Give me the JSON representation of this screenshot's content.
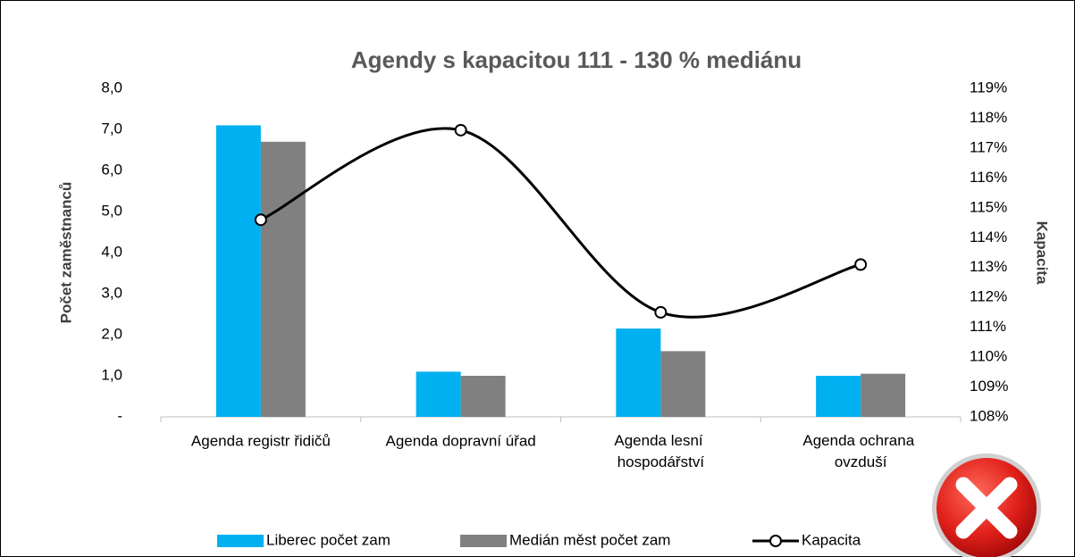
{
  "chart_data": {
    "type": "bar_line",
    "title": "Agendy s kapacitou 111 - 130 % mediánu",
    "y_label": "Počet zaměstnanců",
    "y2_label": "Kapacita",
    "categories": [
      "Agenda registr řidičů",
      "Agenda dopravní úřad",
      "Agenda lesní hospodářství",
      "Agenda ochrana ovzduší"
    ],
    "series": [
      {
        "name": "Liberec počet zam",
        "type": "bar",
        "color": "#00b0f0",
        "values": [
          7.1,
          1.1,
          2.15,
          1.0
        ]
      },
      {
        "name": "Medián měst počet zam",
        "type": "bar",
        "color": "#808080",
        "values": [
          6.7,
          1.0,
          1.6,
          1.05
        ]
      },
      {
        "name": "Kapacita",
        "type": "line",
        "axis": "y2",
        "color": "#000000",
        "smooth": true,
        "values": [
          114.6,
          117.6,
          111.5,
          113.1
        ]
      }
    ],
    "ylim": [
      0,
      8
    ],
    "yticks": [
      {
        "value": 0,
        "label": "-"
      },
      {
        "value": 1,
        "label": "1,0"
      },
      {
        "value": 2,
        "label": "2,0"
      },
      {
        "value": 3,
        "label": "3,0"
      },
      {
        "value": 4,
        "label": "4,0"
      },
      {
        "value": 5,
        "label": "5,0"
      },
      {
        "value": 6,
        "label": "6,0"
      },
      {
        "value": 7,
        "label": "7,0"
      },
      {
        "value": 8,
        "label": "8,0"
      }
    ],
    "y2lim": [
      108,
      119
    ],
    "y2ticks": [
      {
        "value": 108,
        "label": "108%"
      },
      {
        "value": 109,
        "label": "109%"
      },
      {
        "value": 110,
        "label": "110%"
      },
      {
        "value": 111,
        "label": "111%"
      },
      {
        "value": 112,
        "label": "112%"
      },
      {
        "value": 113,
        "label": "113%"
      },
      {
        "value": 114,
        "label": "114%"
      },
      {
        "value": 115,
        "label": "115%"
      },
      {
        "value": 116,
        "label": "116%"
      },
      {
        "value": 117,
        "label": "117%"
      },
      {
        "value": 118,
        "label": "118%"
      },
      {
        "value": 119,
        "label": "119%"
      }
    ],
    "legend": "bottom"
  }
}
